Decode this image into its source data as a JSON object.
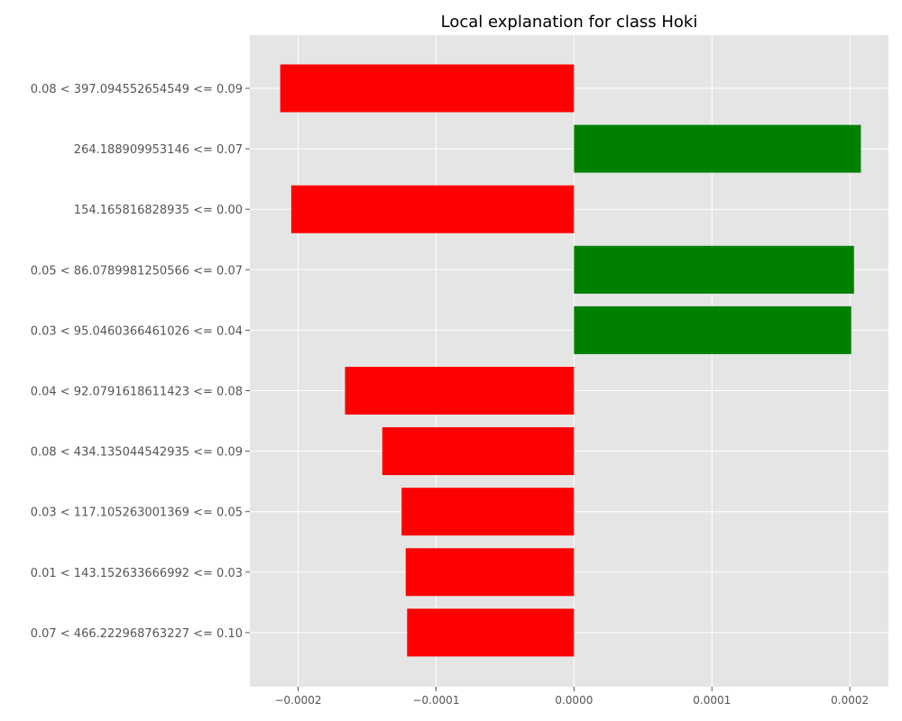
{
  "chart_data": {
    "type": "bar",
    "orientation": "horizontal",
    "title": "Local explanation for class Hoki",
    "xlabel": "",
    "ylabel": "",
    "xlim": [
      -0.000235,
      0.000228
    ],
    "xticks": [
      -0.0002,
      -0.0001,
      0.0,
      0.0001,
      0.0002
    ],
    "xtick_labels": [
      "−0.0002",
      "−0.0001",
      "0.0000",
      "0.0001",
      "0.0002"
    ],
    "grid": true,
    "colors": {
      "positive": "#008000",
      "negative": "#ff0000",
      "background": "#e5e5e5"
    },
    "categories": [
      "0.08 < 397.094552654549 <= 0.09",
      "264.188909953146 <= 0.07",
      "154.165816828935 <= 0.00",
      "0.05 < 86.0789981250566 <= 0.07",
      "0.03 < 95.0460366461026 <= 0.04",
      "0.04 < 92.0791618611423 <= 0.08",
      "0.08 < 434.135044542935 <= 0.09",
      "0.03 < 117.105263001369 <= 0.05",
      "0.01 < 143.152633666992 <= 0.03",
      "0.07 < 466.222968763227 <= 0.10"
    ],
    "values": [
      -0.000213,
      0.000208,
      -0.000205,
      0.000203,
      0.000201,
      -0.000166,
      -0.000139,
      -0.000125,
      -0.000122,
      -0.000121
    ]
  }
}
